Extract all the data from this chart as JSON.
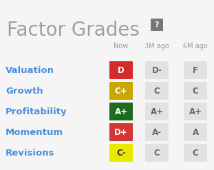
{
  "title": "Factor Grades",
  "title_color": "#a0a0a0",
  "bg_color": "#f5f5f5",
  "col_headers": [
    "Now",
    "3M ago",
    "6M ago"
  ],
  "col_header_color": "#999999",
  "row_labels": [
    "Valuation",
    "Growth",
    "Profitability",
    "Momentum",
    "Revisions"
  ],
  "row_label_color": "#4a90d9",
  "grades": [
    [
      "D",
      "D-",
      "F"
    ],
    [
      "C+",
      "C",
      "C"
    ],
    [
      "A+",
      "A+",
      "A+"
    ],
    [
      "D+",
      "A-",
      "A"
    ],
    [
      "C-",
      "C",
      "C"
    ]
  ],
  "now_bg_colors": [
    "#d42b2b",
    "#c8a800",
    "#1e6b1e",
    "#d43535",
    "#e8e800"
  ],
  "now_text_colors": [
    "#ffffff",
    "#ffffff",
    "#ffffff",
    "#ffffff",
    "#333333"
  ],
  "other_bg_color": "#e2e2e2",
  "other_text_color": "#666666",
  "question_mark_bg": "#777777",
  "question_mark_color": "#ffffff",
  "figw": 3.11,
  "figh": 2.47,
  "dpi": 100
}
